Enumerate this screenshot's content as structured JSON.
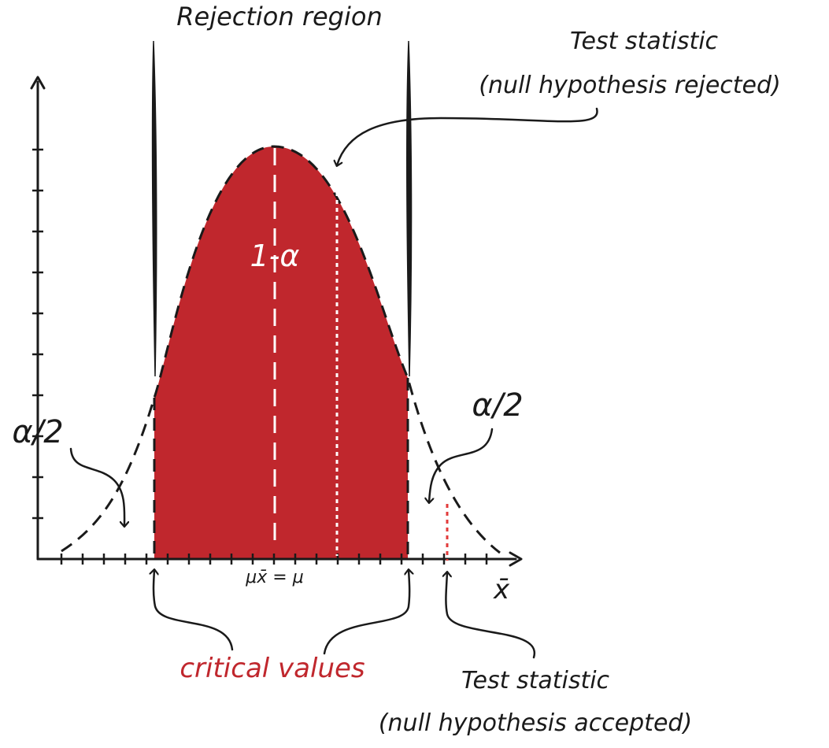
{
  "labels": {
    "rejection_region": "Rejection region",
    "test_stat_rejected_line1": "Test statistic",
    "test_stat_rejected_line2": "(null hypothesis rejected)",
    "center_area": "1-α",
    "alpha_half_left": "α/2",
    "alpha_half_right": "α/2",
    "mean_label": "μx̄ = μ",
    "x_axis_label": "x̄",
    "critical_values": "critical values",
    "test_stat_accepted_line1": "Test statistic",
    "test_stat_accepted_line2": "(null hypothesis accepted)"
  },
  "colors": {
    "acceptance_fill": "#c0272d",
    "ink": "#1a1a1a",
    "critical_text": "#c0272d",
    "accepted_stat_line": "#e23b3b",
    "rejected_stat_line": "#ffffff"
  }
}
